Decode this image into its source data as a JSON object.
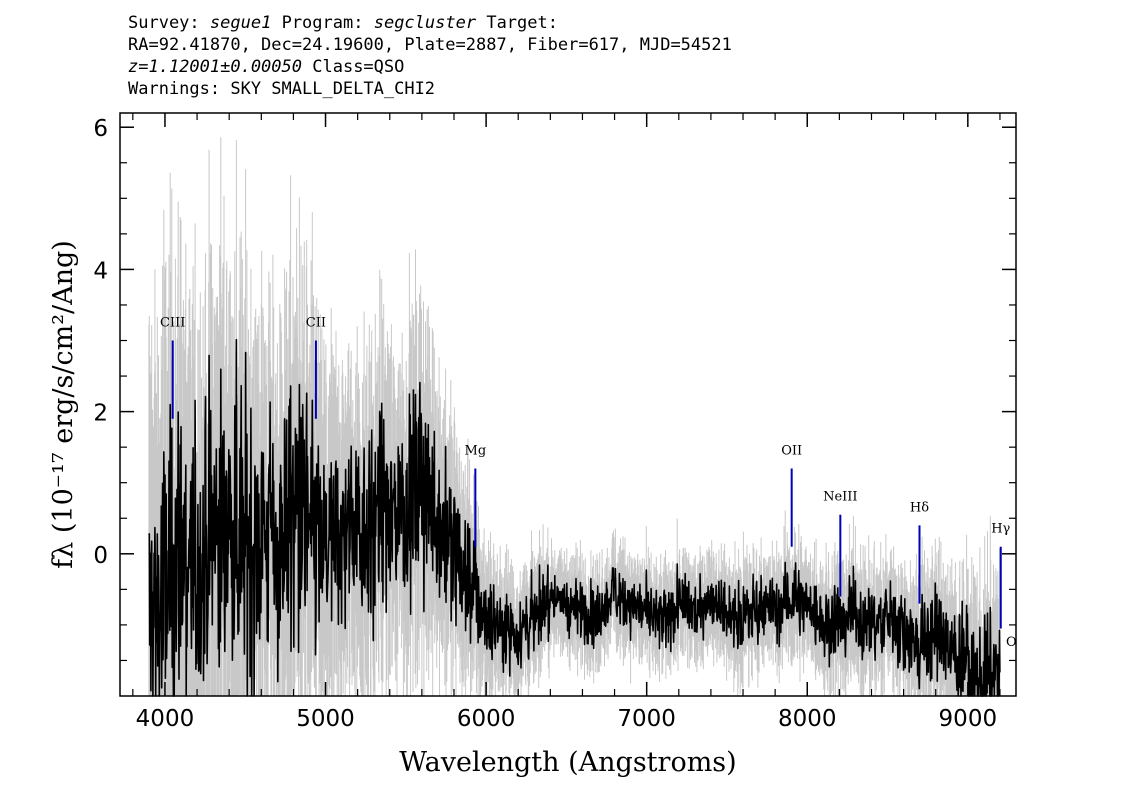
{
  "header": {
    "line1": {
      "survey_label": "Survey:",
      "survey": "segue1",
      "program_label": "Program:",
      "program": "segcluster",
      "target_label": "Target:"
    },
    "line2": "RA=92.41870, Dec=24.19600, Plate=2887, Fiber=617, MJD=54521",
    "line3": {
      "redshift": "z=1.12001±0.00050",
      "class": "Class=QSO"
    },
    "line4": "Warnings: SKY SMALL_DELTA_CHI2"
  },
  "chart_data": {
    "type": "line",
    "xlabel": "Wavelength (Angstroms)",
    "ylabel": "fλ (10⁻¹⁷ erg/s/cm²/Ang)",
    "xlim": [
      3720,
      9300
    ],
    "ylim": [
      -2.0,
      6.2
    ],
    "x_ticks": [
      4000,
      5000,
      6000,
      7000,
      8000,
      9000
    ],
    "x_tick_labels": [
      "4000",
      "5000",
      "6000",
      "7000",
      "8000",
      "9000"
    ],
    "y_ticks": [
      0,
      2,
      4,
      6
    ],
    "y_tick_labels": [
      "0",
      "2",
      "4",
      "6"
    ],
    "grid": false,
    "series": [
      {
        "role": "flux",
        "color": "#000000",
        "x": [
          3900,
          4000,
          4100,
          4200,
          4300,
          4400,
          4500,
          4600,
          4700,
          4800,
          4900,
          5000,
          5100,
          5200,
          5300,
          5400,
          5500,
          5600,
          5700,
          5800,
          5900,
          6000,
          6100,
          6200,
          6300,
          6400,
          6500,
          6600,
          6700,
          6800,
          6900,
          7000,
          7100,
          7200,
          7300,
          7400,
          7500,
          7600,
          7700,
          7800,
          7900,
          8000,
          8100,
          8200,
          8300,
          8400,
          8500,
          8600,
          8700,
          8800,
          8900,
          9000,
          9100,
          9200
        ],
        "y": [
          -0.9,
          -0.6,
          0.1,
          -0.4,
          0.3,
          0.5,
          0.2,
          0.3,
          0.1,
          0.7,
          0.4,
          0.0,
          0.2,
          0.5,
          0.4,
          0.6,
          0.7,
          1.0,
          0.5,
          0.0,
          -0.4,
          -0.9,
          -1.0,
          -1.1,
          -0.9,
          -0.6,
          -0.7,
          -0.8,
          -0.9,
          -0.5,
          -0.7,
          -0.8,
          -1.0,
          -0.7,
          -0.8,
          -0.6,
          -0.8,
          -0.9,
          -0.7,
          -0.8,
          -0.6,
          -0.7,
          -1.0,
          -0.9,
          -0.8,
          -1.0,
          -0.9,
          -1.1,
          -1.3,
          -1.1,
          -1.4,
          -1.6,
          -1.8,
          -1.9
        ]
      },
      {
        "role": "error",
        "color": "#c8c8c8",
        "x": [
          3900,
          4000,
          4100,
          4200,
          4300,
          4400,
          4500,
          4600,
          4700,
          4800,
          4900,
          5000,
          5100,
          5200,
          5300,
          5400,
          5500,
          5600,
          5700,
          5800,
          5900,
          6000,
          6100,
          6200,
          6300,
          6400,
          6500,
          6600,
          6700,
          6800,
          6900,
          7000,
          7100,
          7200,
          7300,
          7400,
          7500,
          7600,
          7700,
          7800,
          7900,
          8000,
          8100,
          8200,
          8300,
          8400,
          8500,
          8600,
          8700,
          8800,
          8900,
          9000,
          9100,
          9200
        ],
        "y": [
          2.2,
          2.4,
          2.3,
          2.0,
          2.1,
          2.2,
          1.9,
          1.8,
          1.7,
          1.9,
          1.7,
          1.5,
          1.4,
          1.3,
          1.4,
          1.3,
          1.2,
          1.4,
          1.1,
          1.0,
          0.8,
          0.6,
          0.5,
          0.5,
          0.5,
          0.4,
          0.4,
          0.4,
          0.4,
          0.4,
          0.4,
          0.4,
          0.4,
          0.4,
          0.4,
          0.4,
          0.4,
          0.5,
          0.4,
          0.4,
          0.5,
          0.4,
          0.5,
          0.5,
          0.5,
          0.5,
          0.5,
          0.5,
          0.6,
          0.6,
          0.6,
          0.7,
          0.8,
          0.9
        ]
      }
    ],
    "line_markers": [
      {
        "label": "CIII",
        "x": 4048,
        "y_top": 3.0,
        "y_bottom": 1.9,
        "color": "#0000b4"
      },
      {
        "label": "CII",
        "x": 4940,
        "y_top": 3.0,
        "y_bottom": 1.9,
        "color": "#0000b4"
      },
      {
        "label": "Mg",
        "x": 5933,
        "y_top": 1.2,
        "y_bottom": 0.1,
        "color": "#0000b4"
      },
      {
        "label": "OII",
        "x": 7903,
        "y_top": 1.2,
        "y_bottom": 0.1,
        "color": "#0000b4"
      },
      {
        "label": "NeIII",
        "x": 8206,
        "y_top": 0.55,
        "y_bottom": -0.6,
        "color": "#0000b4"
      },
      {
        "label": "Hδ",
        "x": 8699,
        "y_top": 0.4,
        "y_bottom": -0.7,
        "color": "#0000b4"
      },
      {
        "label": "Hγ",
        "x": 9205,
        "y_top": 0.1,
        "y_bottom": -1.05,
        "color": "#0000b4"
      }
    ],
    "edge_label": "O"
  }
}
